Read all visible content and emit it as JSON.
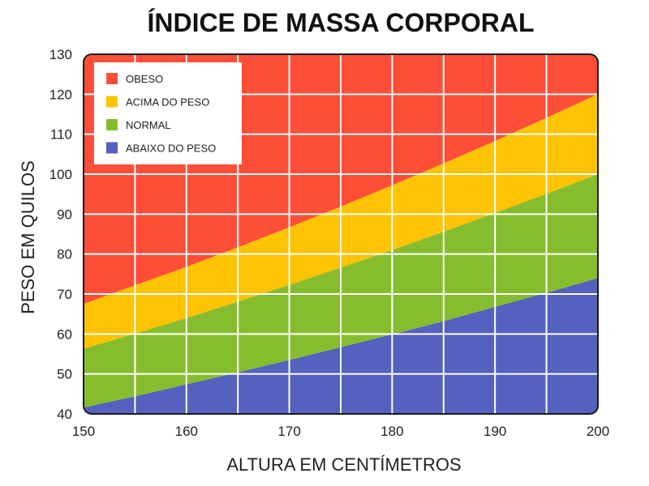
{
  "chart_data": {
    "type": "area",
    "title": "ÍNDICE DE MASSA CORPORAL",
    "xlabel": "ALTURA EM  CENTÍMETROS",
    "ylabel": "PESO EM QUILOS",
    "xlim": [
      150,
      200
    ],
    "ylim": [
      40,
      130
    ],
    "x_ticks": [
      150,
      160,
      170,
      180,
      190,
      200
    ],
    "y_ticks": [
      40,
      50,
      60,
      70,
      80,
      90,
      100,
      110,
      120,
      130
    ],
    "grid": true,
    "legend_position": "top-left",
    "x": [
      150,
      155,
      160,
      165,
      170,
      175,
      180,
      185,
      190,
      195,
      200
    ],
    "series": [
      {
        "name": "ABAIXO DO PESO",
        "color": "#5461be",
        "upper": [
          41.6,
          44.4,
          47.4,
          50.4,
          53.5,
          56.7,
          59.9,
          63.2,
          66.8,
          70.3,
          74.0
        ]
      },
      {
        "name": "NORMAL",
        "color": "#86bd2e",
        "upper": [
          56.3,
          60.1,
          64.0,
          68.1,
          72.3,
          76.6,
          81.0,
          85.6,
          90.3,
          95.1,
          100.0
        ]
      },
      {
        "name": "ACIMA DO PESO",
        "color": "#fec303",
        "upper": [
          67.5,
          72.2,
          76.8,
          81.7,
          86.7,
          91.9,
          97.2,
          102.7,
          108.3,
          114.1,
          120.0
        ]
      },
      {
        "name": "OBESO",
        "color": "#fe4e38",
        "upper": [
          130,
          130,
          130,
          130,
          130,
          130,
          130,
          130,
          130,
          130,
          130
        ]
      }
    ],
    "legend_order": [
      "OBESO",
      "ACIMA DO PESO",
      "NORMAL",
      "ABAIXO DO PESO"
    ]
  }
}
